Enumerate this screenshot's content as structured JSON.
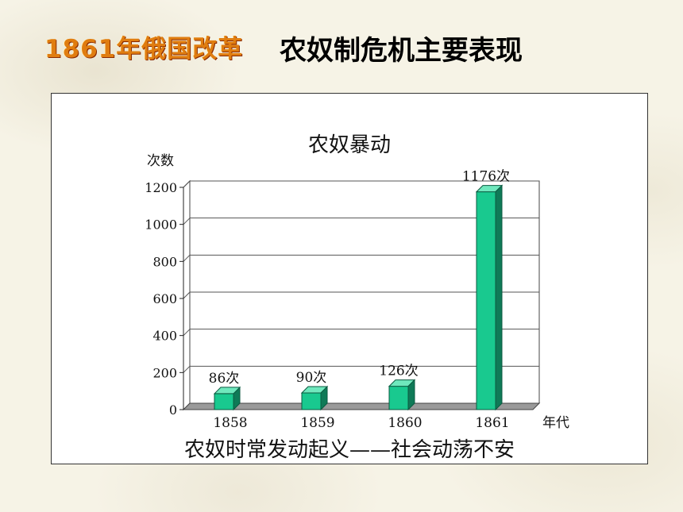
{
  "slide": {
    "topic": "1861年俄国改革",
    "title": "农奴制危机主要表现"
  },
  "chart_data": {
    "type": "bar",
    "title": "农奴暴动",
    "ylabel": "次数",
    "xlabel": "年代",
    "categories": [
      "1858",
      "1859",
      "1860",
      "1861"
    ],
    "values": [
      86,
      90,
      126,
      1176
    ],
    "value_labels": [
      "86次",
      "90次",
      "126次",
      "1176次"
    ],
    "yticks": [
      0,
      200,
      400,
      600,
      800,
      1000,
      1200
    ],
    "ylim": [
      0,
      1200
    ],
    "grid": true,
    "bar_color": "#19c98f",
    "caption": "农奴时常发动起义——社会动荡不安"
  }
}
